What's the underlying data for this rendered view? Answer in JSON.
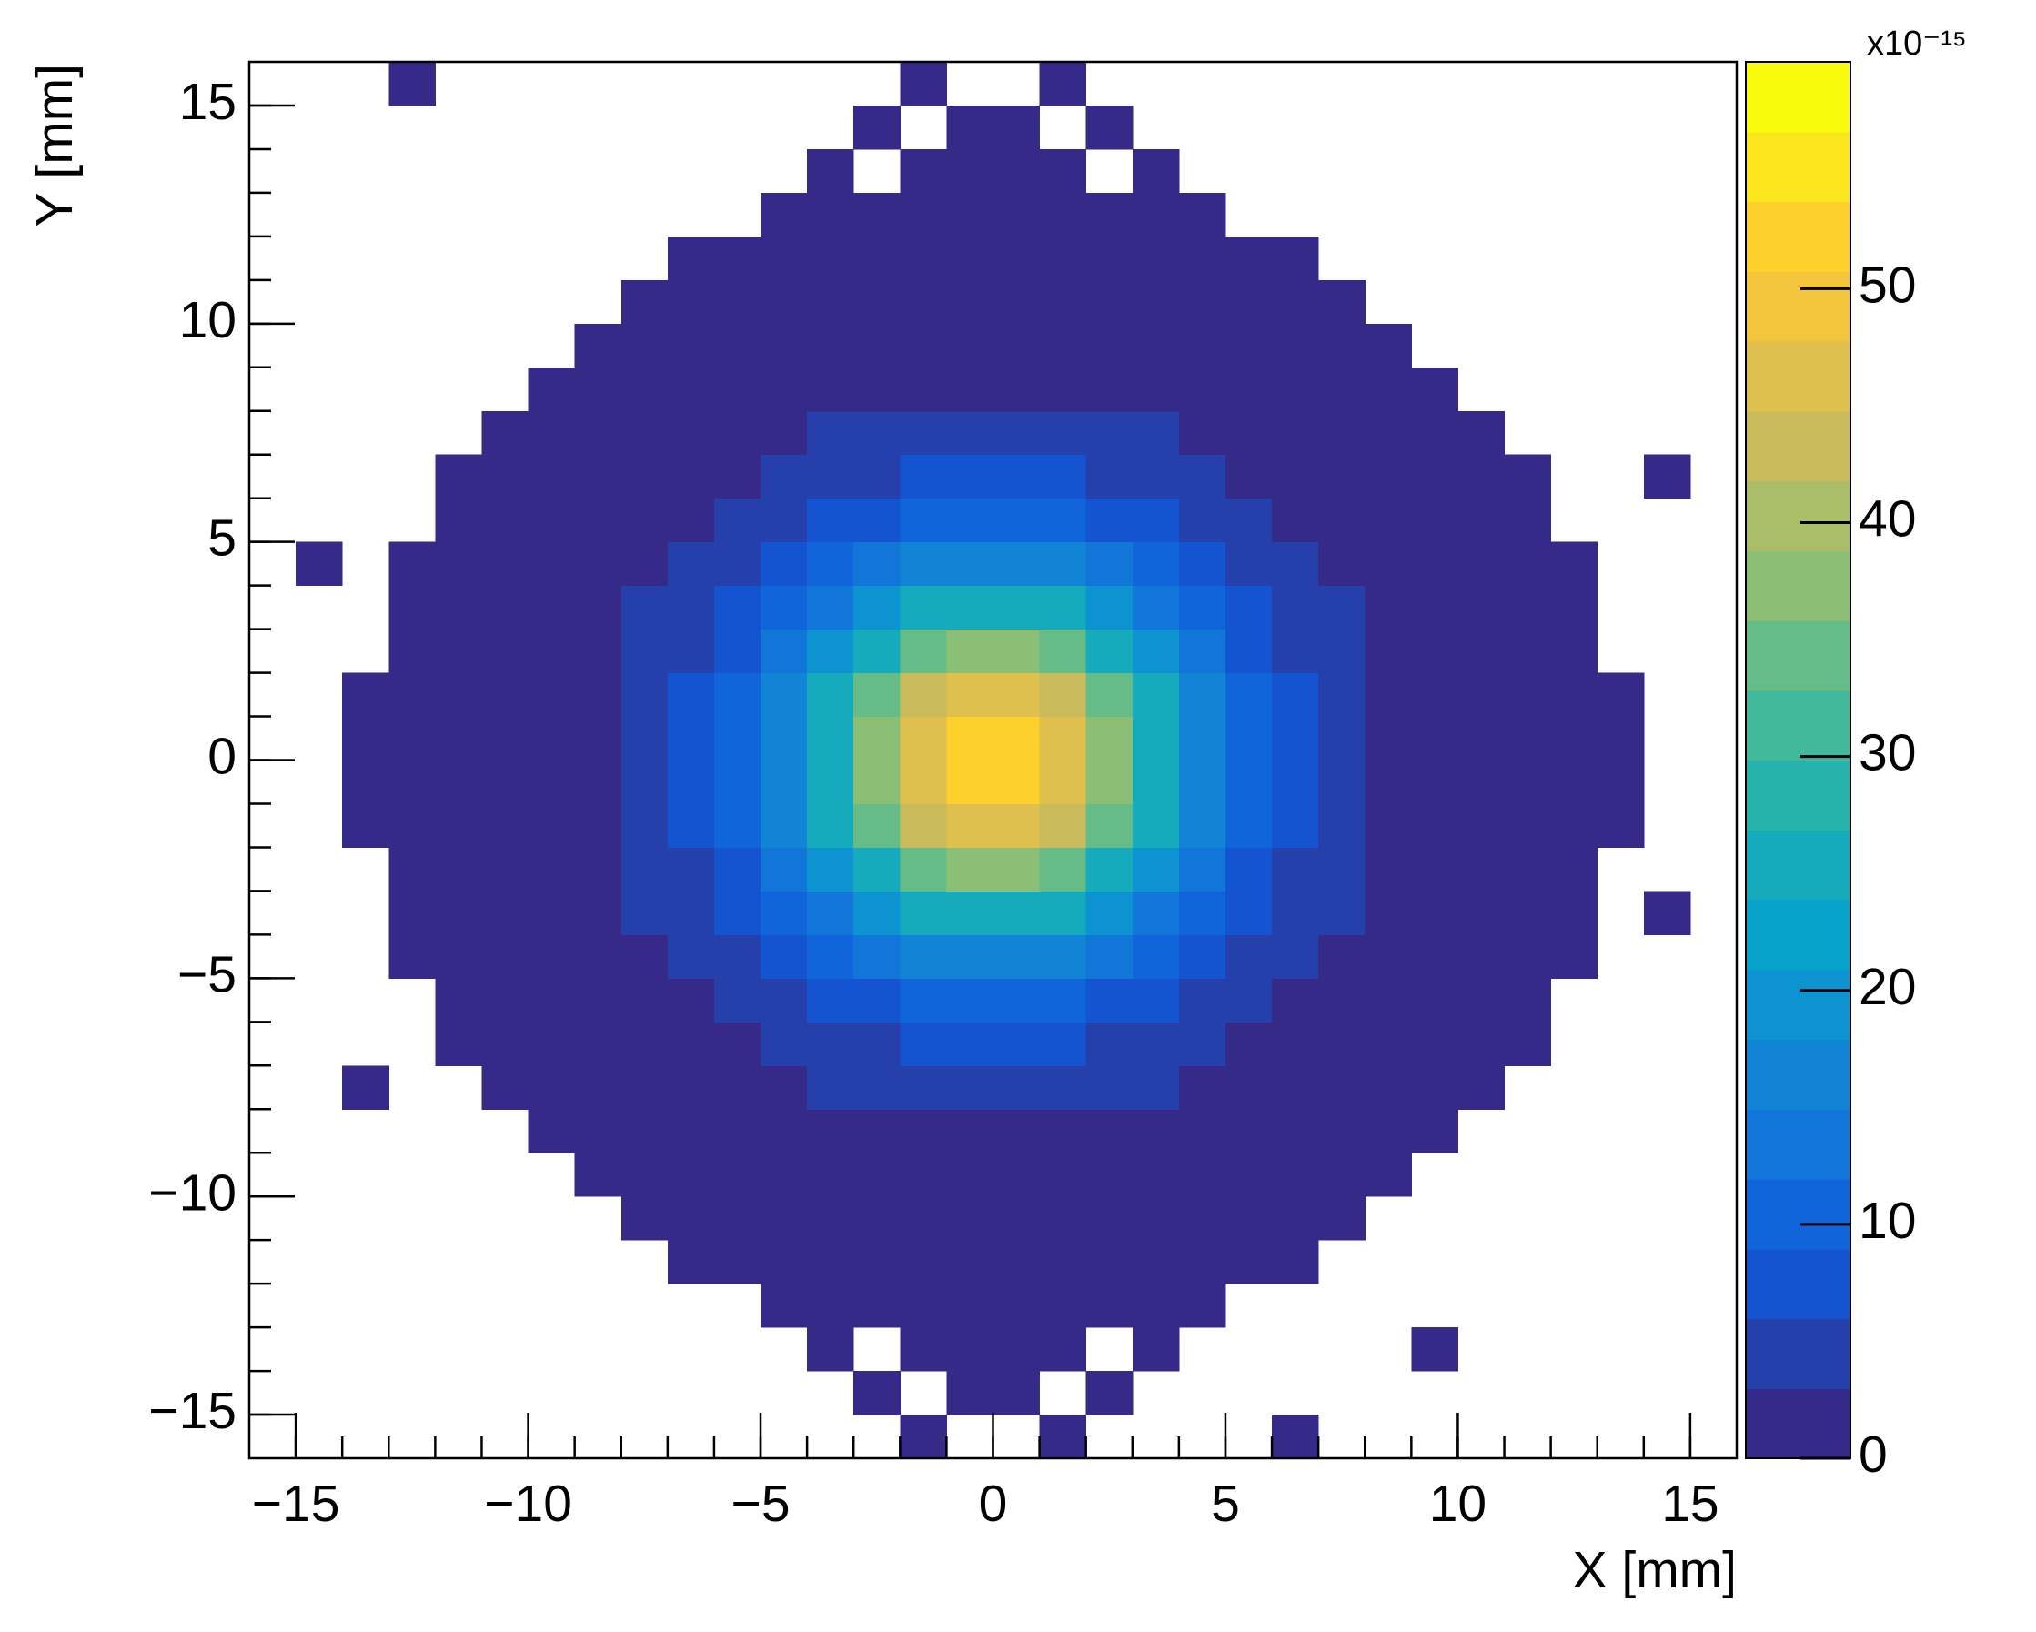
{
  "chart_data": {
    "type": "heatmap",
    "xlabel": "X [mm]",
    "ylabel": "Y [mm]",
    "z_multiplier": "x10⁻¹⁵",
    "xlim": [
      -16,
      16
    ],
    "ylim": [
      -16,
      16
    ],
    "zlim": [
      0,
      59.7
    ],
    "xticks": [
      {
        "value": -15,
        "label": "−15"
      },
      {
        "value": -10,
        "label": "−10"
      },
      {
        "value": -5,
        "label": "−5"
      },
      0,
      5,
      10,
      15
    ],
    "yticks": [
      {
        "value": -15,
        "label": "−15"
      },
      {
        "value": -10,
        "label": "−10"
      },
      {
        "value": -5,
        "label": "−5"
      },
      0,
      5,
      10,
      15
    ],
    "zticks": [
      0,
      10,
      20,
      30,
      40,
      50
    ],
    "palette": "kBird",
    "contours": 20,
    "xbins": [
      -16,
      -15,
      -14,
      -13,
      -12,
      -11,
      -10,
      -9,
      -8,
      -7,
      -6,
      -5,
      -4,
      -3,
      -2,
      -1,
      0,
      1,
      2,
      3,
      4,
      5,
      6,
      7,
      8,
      9,
      10,
      11,
      12,
      13,
      14,
      15,
      16
    ],
    "ybins": [
      -16,
      -15,
      -14,
      -13,
      -12,
      -11,
      -10,
      -9,
      -8,
      -7,
      -6,
      -5,
      -4,
      -3,
      -2,
      -1,
      0,
      1,
      2,
      3,
      4,
      5,
      6,
      7,
      8,
      9,
      10,
      11,
      12,
      13,
      14,
      15,
      16
    ],
    "z": [
      [
        0,
        0,
        0,
        0,
        0,
        0,
        0,
        0,
        0,
        0,
        0,
        0,
        0,
        0,
        1,
        0,
        0,
        1,
        0,
        0,
        0,
        0,
        1,
        0,
        0,
        0,
        0,
        0,
        0,
        0,
        0,
        0
      ],
      [
        0,
        0,
        0,
        0,
        0,
        0,
        0,
        0,
        0,
        0,
        0,
        0,
        0,
        1,
        0,
        1,
        1,
        0,
        1,
        0,
        0,
        0,
        0,
        0,
        0,
        0,
        0,
        0,
        0,
        0,
        0,
        0
      ],
      [
        0,
        0,
        0,
        0,
        0,
        0,
        0,
        0,
        0,
        0,
        0,
        0,
        1,
        0,
        1,
        1,
        1,
        1,
        0,
        1,
        0,
        0,
        0,
        0,
        0,
        1,
        0,
        0,
        0,
        0,
        0,
        0
      ],
      [
        0,
        0,
        0,
        0,
        0,
        0,
        0,
        0,
        0,
        0,
        0,
        1,
        1,
        1,
        1,
        1,
        1,
        1,
        1,
        1,
        1,
        0,
        0,
        0,
        0,
        0,
        0,
        0,
        0,
        0,
        0,
        0
      ],
      [
        0,
        0,
        0,
        0,
        0,
        0,
        0,
        0,
        0,
        1,
        1,
        1,
        1,
        1,
        1,
        1,
        1,
        1,
        1,
        1,
        1,
        1,
        1,
        0,
        0,
        0,
        0,
        0,
        0,
        0,
        0,
        0
      ],
      [
        0,
        0,
        0,
        0,
        0,
        0,
        0,
        0,
        1,
        1,
        1,
        1,
        1,
        1,
        1,
        1,
        1,
        1,
        1,
        1,
        1,
        1,
        1,
        1,
        0,
        0,
        0,
        0,
        0,
        0,
        0,
        0
      ],
      [
        0,
        0,
        0,
        0,
        0,
        0,
        0,
        1,
        1,
        1,
        1,
        1,
        1,
        1,
        2,
        2,
        2,
        2,
        1,
        1,
        1,
        1,
        1,
        1,
        1,
        0,
        0,
        0,
        0,
        0,
        0,
        0
      ],
      [
        0,
        0,
        0,
        0,
        0,
        0,
        1,
        1,
        1,
        1,
        1,
        2,
        2,
        2,
        2,
        2,
        2,
        2,
        2,
        2,
        2,
        1,
        1,
        1,
        1,
        1,
        0,
        0,
        0,
        0,
        0,
        0
      ],
      [
        0,
        0,
        1,
        0,
        0,
        1,
        1,
        1,
        1,
        1,
        2,
        2,
        3,
        3,
        3,
        4,
        4,
        3,
        3,
        3,
        2,
        2,
        1,
        1,
        1,
        1,
        1,
        0,
        0,
        0,
        0,
        0
      ],
      [
        0,
        0,
        0,
        0,
        1,
        1,
        1,
        1,
        1,
        2,
        2,
        3,
        4,
        5,
        6,
        6,
        6,
        6,
        5,
        4,
        3,
        2,
        2,
        1,
        1,
        1,
        1,
        1,
        0,
        0,
        0,
        0
      ],
      [
        0,
        0,
        0,
        0,
        1,
        1,
        1,
        1,
        2,
        2,
        3,
        5,
        6,
        8,
        9,
        10,
        10,
        9,
        8,
        6,
        5,
        3,
        2,
        2,
        1,
        1,
        1,
        1,
        0,
        0,
        0,
        0
      ],
      [
        0,
        0,
        0,
        1,
        1,
        1,
        1,
        2,
        2,
        3,
        5,
        7,
        9,
        13,
        15,
        17,
        17,
        15,
        13,
        9,
        7,
        5,
        3,
        2,
        2,
        1,
        1,
        1,
        1,
        0,
        0,
        0
      ],
      [
        0,
        0,
        0,
        1,
        1,
        1,
        1,
        2,
        3,
        4,
        6,
        9,
        14,
        19,
        24,
        26,
        26,
        24,
        19,
        14,
        9,
        6,
        4,
        3,
        2,
        1,
        1,
        1,
        1,
        0,
        1,
        0
      ],
      [
        0,
        0,
        0,
        1,
        1,
        1,
        1,
        2,
        3,
        5,
        8,
        13,
        19,
        26,
        33,
        37,
        37,
        33,
        26,
        19,
        13,
        8,
        5,
        3,
        2,
        1,
        1,
        1,
        1,
        0,
        0,
        0
      ],
      [
        0,
        0,
        1,
        1,
        1,
        1,
        2,
        2,
        3,
        6,
        9,
        15,
        24,
        33,
        42,
        47,
        47,
        42,
        33,
        24,
        15,
        9,
        6,
        3,
        2,
        2,
        1,
        1,
        1,
        1,
        0,
        0
      ],
      [
        0,
        0,
        1,
        1,
        1,
        1,
        2,
        2,
        4,
        6,
        10,
        17,
        26,
        37,
        47,
        52,
        52,
        47,
        37,
        26,
        17,
        10,
        6,
        4,
        2,
        2,
        1,
        1,
        1,
        1,
        0,
        0
      ],
      [
        0,
        0,
        1,
        1,
        1,
        1,
        2,
        2,
        4,
        6,
        10,
        17,
        26,
        37,
        47,
        52,
        52,
        47,
        37,
        26,
        17,
        10,
        6,
        4,
        2,
        2,
        1,
        1,
        1,
        1,
        0,
        0
      ],
      [
        0,
        0,
        1,
        1,
        1,
        1,
        2,
        2,
        3,
        6,
        9,
        15,
        24,
        33,
        42,
        47,
        47,
        42,
        33,
        24,
        15,
        9,
        6,
        3,
        2,
        2,
        1,
        1,
        1,
        1,
        0,
        0
      ],
      [
        0,
        0,
        0,
        1,
        1,
        1,
        1,
        2,
        3,
        5,
        8,
        13,
        19,
        26,
        33,
        37,
        37,
        33,
        26,
        19,
        13,
        8,
        5,
        3,
        2,
        1,
        1,
        1,
        1,
        0,
        0,
        0
      ],
      [
        0,
        0,
        0,
        1,
        1,
        1,
        1,
        2,
        3,
        4,
        6,
        9,
        14,
        19,
        24,
        26,
        26,
        24,
        19,
        14,
        9,
        6,
        4,
        3,
        2,
        1,
        1,
        1,
        1,
        0,
        0,
        0
      ],
      [
        0,
        1,
        0,
        1,
        1,
        1,
        1,
        2,
        2,
        3,
        5,
        7,
        9,
        13,
        15,
        17,
        17,
        15,
        13,
        9,
        7,
        5,
        3,
        2,
        2,
        1,
        1,
        1,
        1,
        0,
        0,
        0
      ],
      [
        0,
        0,
        0,
        0,
        1,
        1,
        1,
        1,
        2,
        2,
        3,
        5,
        6,
        8,
        9,
        10,
        10,
        9,
        8,
        6,
        5,
        3,
        2,
        2,
        1,
        1,
        1,
        1,
        0,
        0,
        0,
        0
      ],
      [
        0,
        0,
        0,
        0,
        1,
        1,
        1,
        1,
        1,
        2,
        2,
        3,
        4,
        5,
        6,
        6,
        6,
        6,
        5,
        4,
        3,
        2,
        2,
        1,
        1,
        1,
        1,
        1,
        0,
        0,
        1,
        0
      ],
      [
        0,
        0,
        0,
        0,
        0,
        1,
        1,
        1,
        1,
        1,
        2,
        2,
        3,
        3,
        3,
        4,
        4,
        3,
        3,
        3,
        2,
        2,
        1,
        1,
        1,
        1,
        1,
        0,
        0,
        0,
        0,
        0
      ],
      [
        0,
        0,
        0,
        0,
        0,
        0,
        1,
        1,
        1,
        1,
        1,
        2,
        2,
        2,
        2,
        2,
        2,
        2,
        2,
        2,
        2,
        1,
        1,
        1,
        1,
        1,
        0,
        0,
        0,
        0,
        0,
        0
      ],
      [
        0,
        0,
        0,
        0,
        0,
        0,
        0,
        1,
        1,
        1,
        1,
        1,
        1,
        1,
        2,
        2,
        2,
        2,
        1,
        1,
        1,
        1,
        1,
        1,
        1,
        0,
        0,
        0,
        0,
        0,
        0,
        0
      ],
      [
        0,
        0,
        0,
        0,
        0,
        0,
        0,
        0,
        1,
        1,
        1,
        1,
        1,
        1,
        1,
        1,
        1,
        1,
        1,
        1,
        1,
        1,
        1,
        1,
        0,
        0,
        0,
        0,
        0,
        0,
        0,
        0
      ],
      [
        0,
        0,
        0,
        0,
        0,
        0,
        0,
        0,
        0,
        1,
        1,
        1,
        1,
        1,
        1,
        1,
        1,
        1,
        1,
        1,
        1,
        1,
        1,
        0,
        0,
        0,
        0,
        0,
        0,
        0,
        0,
        0
      ],
      [
        0,
        0,
        0,
        0,
        0,
        0,
        0,
        0,
        0,
        0,
        0,
        1,
        1,
        1,
        1,
        1,
        1,
        1,
        1,
        1,
        1,
        0,
        0,
        0,
        0,
        0,
        0,
        0,
        0,
        0,
        0,
        0
      ],
      [
        0,
        0,
        0,
        0,
        0,
        0,
        0,
        0,
        0,
        0,
        0,
        0,
        1,
        0,
        1,
        1,
        1,
        1,
        0,
        1,
        0,
        0,
        0,
        0,
        0,
        0,
        0,
        0,
        0,
        0,
        0,
        0
      ],
      [
        0,
        0,
        0,
        0,
        0,
        0,
        0,
        0,
        0,
        0,
        0,
        0,
        0,
        1,
        0,
        1,
        1,
        0,
        1,
        0,
        0,
        0,
        0,
        0,
        0,
        0,
        0,
        0,
        0,
        0,
        0,
        0
      ],
      [
        0,
        0,
        0,
        1,
        0,
        0,
        0,
        0,
        0,
        0,
        0,
        0,
        0,
        0,
        1,
        0,
        0,
        1,
        0,
        0,
        0,
        0,
        0,
        0,
        0,
        0,
        0,
        0,
        0,
        0,
        0,
        0
      ]
    ]
  }
}
